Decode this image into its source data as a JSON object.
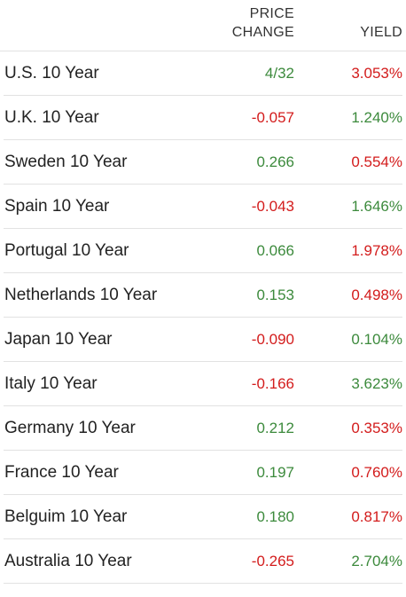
{
  "header": {
    "change_line1": "PRICE",
    "change_line2": "CHANGE",
    "yield": "YIELD"
  },
  "colors": {
    "positive": "#3c8a3c",
    "negative": "#d31c1c"
  },
  "rows": [
    {
      "name": "U.S. 10 Year",
      "change": "4/32",
      "change_dir": "pos",
      "yield": "3.053%",
      "yield_dir": "neg"
    },
    {
      "name": "U.K. 10 Year",
      "change": "-0.057",
      "change_dir": "neg",
      "yield": "1.240%",
      "yield_dir": "pos"
    },
    {
      "name": "Sweden 10 Year",
      "change": "0.266",
      "change_dir": "pos",
      "yield": "0.554%",
      "yield_dir": "neg"
    },
    {
      "name": "Spain 10 Year",
      "change": "-0.043",
      "change_dir": "neg",
      "yield": "1.646%",
      "yield_dir": "pos"
    },
    {
      "name": "Portugal 10 Year",
      "change": "0.066",
      "change_dir": "pos",
      "yield": "1.978%",
      "yield_dir": "neg"
    },
    {
      "name": "Netherlands 10 Year",
      "change": "0.153",
      "change_dir": "pos",
      "yield": "0.498%",
      "yield_dir": "neg"
    },
    {
      "name": "Japan 10 Year",
      "change": "-0.090",
      "change_dir": "neg",
      "yield": "0.104%",
      "yield_dir": "pos"
    },
    {
      "name": "Italy 10 Year",
      "change": "-0.166",
      "change_dir": "neg",
      "yield": "3.623%",
      "yield_dir": "pos"
    },
    {
      "name": "Germany 10 Year",
      "change": "0.212",
      "change_dir": "pos",
      "yield": "0.353%",
      "yield_dir": "neg"
    },
    {
      "name": "France 10 Year",
      "change": "0.197",
      "change_dir": "pos",
      "yield": "0.760%",
      "yield_dir": "neg"
    },
    {
      "name": "Belguim 10 Year",
      "change": "0.180",
      "change_dir": "pos",
      "yield": "0.817%",
      "yield_dir": "neg"
    },
    {
      "name": "Australia 10 Year",
      "change": "-0.265",
      "change_dir": "neg",
      "yield": "2.704%",
      "yield_dir": "pos"
    }
  ]
}
